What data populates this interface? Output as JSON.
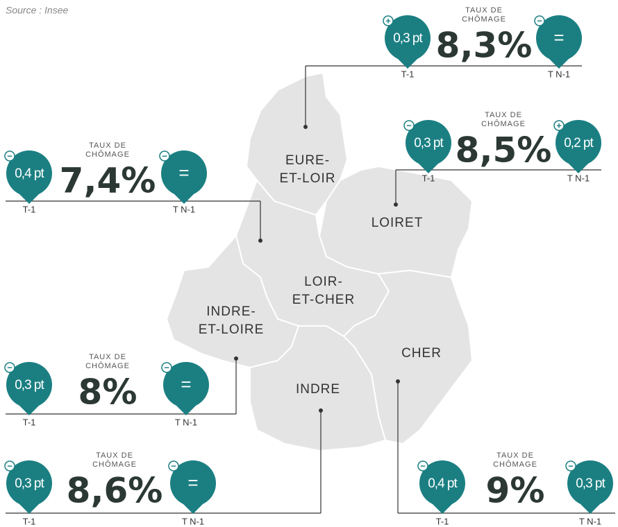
{
  "source": "Source : Insee",
  "departments": [
    {
      "name": [
        "EURE-",
        "ET-LOIR"
      ],
      "title": [
        "TAUX DE",
        "CHÔMAGE"
      ],
      "rate": "8,3%",
      "t1": {
        "sign": "+",
        "value": "0,3 pt",
        "label": "T-1"
      },
      "tn1": {
        "sign": "−",
        "value": "=",
        "label": "T N-1"
      }
    },
    {
      "name": [
        "LOIRET"
      ],
      "title": [
        "TAUX DE",
        "CHÔMAGE"
      ],
      "rate": "8,5%",
      "t1": {
        "sign": "−",
        "value": "0,3 pt",
        "label": "T-1"
      },
      "tn1": {
        "sign": "+",
        "value": "0,2 pt",
        "label": "T N-1"
      }
    },
    {
      "name": [
        "LOIR-",
        "ET-CHER"
      ],
      "title": [
        "TAUX DE",
        "CHÔMAGE"
      ],
      "rate": "7,4%",
      "t1": {
        "sign": "−",
        "value": "0,4 pt",
        "label": "T-1"
      },
      "tn1": {
        "sign": "−",
        "value": "=",
        "label": "T N-1"
      }
    },
    {
      "name": [
        "INDRE-",
        "ET-LOIRE"
      ],
      "title": [
        "TAUX DE",
        "CHÔMAGE"
      ],
      "rate": "8%",
      "t1": {
        "sign": "−",
        "value": "0,3 pt",
        "label": "T-1"
      },
      "tn1": {
        "sign": "−",
        "value": "=",
        "label": "T N-1"
      }
    },
    {
      "name": [
        "CHER"
      ],
      "title": [
        "TAUX DE",
        "CHÔMAGE"
      ],
      "rate": "9%",
      "t1": {
        "sign": "−",
        "value": "0,4 pt",
        "label": "T-1"
      },
      "tn1": {
        "sign": "−",
        "value": "0,3 pt",
        "label": "T N-1"
      }
    },
    {
      "name": [
        "INDRE"
      ],
      "title": [
        "TAUX DE",
        "CHÔMAGE"
      ],
      "rate": "8,6%",
      "t1": {
        "sign": "−",
        "value": "0,3 pt",
        "label": "T-1"
      },
      "tn1": {
        "sign": "−",
        "value": "=",
        "label": "T N-1"
      }
    }
  ]
}
